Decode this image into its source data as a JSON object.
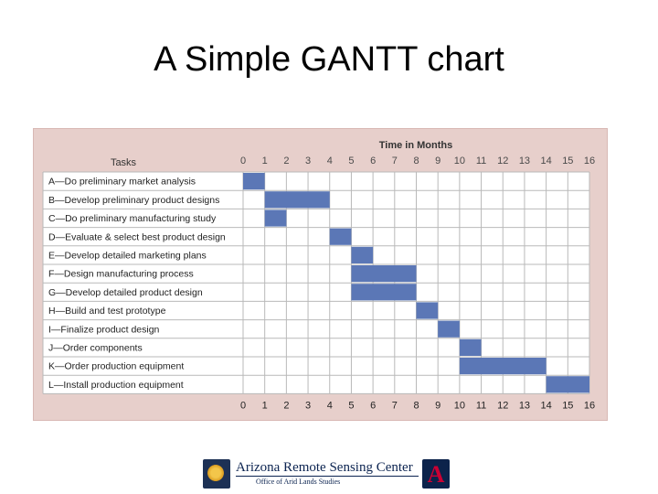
{
  "slide": {
    "title": "A Simple GANTT chart"
  },
  "footer": {
    "org_name": "Arizona Remote Sensing Center",
    "office": "Office of Arid Lands Studies",
    "logo_letter": "A"
  },
  "colors": {
    "frame": "#e7cfcb",
    "bar": "#5b77b6",
    "grid": "#b9b9b9",
    "header_text": "#4a4a4a"
  },
  "chart_data": {
    "type": "gantt",
    "title": "",
    "xlabel": "Time in Months",
    "ylabel": "Tasks",
    "xlim": [
      0,
      16
    ],
    "x_ticks": [
      "0",
      "1",
      "2",
      "3",
      "4",
      "5",
      "6",
      "7",
      "8",
      "9",
      "10",
      "11",
      "12",
      "13",
      "14",
      "15",
      "16"
    ],
    "tasks": [
      {
        "label": "A—Do preliminary market analysis",
        "start": 0,
        "end": 1
      },
      {
        "label": "B—Develop preliminary product designs",
        "start": 1,
        "end": 4
      },
      {
        "label": "C—Do preliminary manufacturing study",
        "start": 1,
        "end": 2
      },
      {
        "label": "D—Evaluate & select best product design",
        "start": 4,
        "end": 5
      },
      {
        "label": "E—Develop detailed marketing plans",
        "start": 5,
        "end": 6
      },
      {
        "label": "F—Design manufacturing process",
        "start": 5,
        "end": 8
      },
      {
        "label": "G—Develop detailed product design",
        "start": 5,
        "end": 8
      },
      {
        "label": "H—Build and test prototype",
        "start": 8,
        "end": 9
      },
      {
        "label": "I—Finalize product design",
        "start": 9,
        "end": 10
      },
      {
        "label": "J—Order components",
        "start": 10,
        "end": 11
      },
      {
        "label": "K—Order production equipment",
        "start": 10,
        "end": 14
      },
      {
        "label": "L—Install production equipment",
        "start": 14,
        "end": 16
      }
    ],
    "grid": true
  }
}
